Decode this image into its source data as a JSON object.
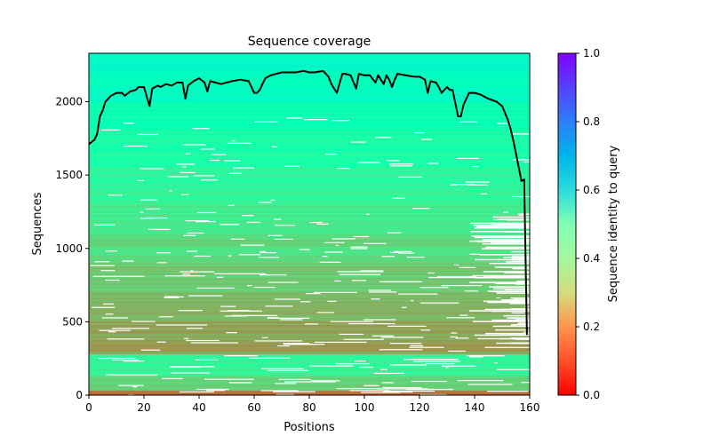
{
  "chart_data": {
    "type": "heatmap",
    "title": "Sequence coverage",
    "xlabel": "Positions",
    "ylabel": "Sequences",
    "xlim": [
      0,
      160
    ],
    "ylim": [
      0,
      2330
    ],
    "xticks": [
      "0",
      "20",
      "40",
      "60",
      "80",
      "100",
      "120",
      "140",
      "160"
    ],
    "xtick_values": [
      0,
      20,
      40,
      60,
      80,
      100,
      120,
      140,
      160
    ],
    "yticks": [
      "0",
      "500",
      "1000",
      "1500",
      "2000"
    ],
    "ytick_values": [
      0,
      500,
      1000,
      1500,
      2000
    ],
    "colorbar": {
      "label": "Sequence identity to query",
      "range": [
        0.0,
        1.0
      ],
      "ticks": [
        "0.0",
        "0.2",
        "0.4",
        "0.6",
        "0.8",
        "1.0"
      ],
      "tick_values": [
        0.0,
        0.2,
        0.4,
        0.6,
        0.8,
        1.0
      ],
      "colormap": "rainbow_r"
    },
    "identity_bands": [
      {
        "y0": 0,
        "y1": 30,
        "identity": 0.14
      },
      {
        "y0": 30,
        "y1": 130,
        "identity": 0.3
      },
      {
        "y0": 130,
        "y1": 280,
        "identity": 0.4
      },
      {
        "y0": 280,
        "y1": 340,
        "identity": 0.2
      },
      {
        "y0": 340,
        "y1": 500,
        "identity": 0.22
      },
      {
        "y0": 500,
        "y1": 700,
        "identity": 0.25
      },
      {
        "y0": 700,
        "y1": 900,
        "identity": 0.29
      },
      {
        "y0": 900,
        "y1": 1100,
        "identity": 0.33
      },
      {
        "y0": 1100,
        "y1": 1300,
        "identity": 0.37
      },
      {
        "y0": 1300,
        "y1": 1550,
        "identity": 0.41
      },
      {
        "y0": 1550,
        "y1": 1800,
        "identity": 0.45
      },
      {
        "y0": 1800,
        "y1": 2000,
        "identity": 0.49
      },
      {
        "y0": 2000,
        "y1": 2200,
        "identity": 0.54
      },
      {
        "y0": 2200,
        "y1": 2330,
        "identity": 0.57
      }
    ],
    "coverage": {
      "x": [
        0,
        2,
        3,
        4,
        5,
        6,
        8,
        10,
        12,
        13,
        15,
        17,
        18,
        20,
        22,
        23,
        25,
        26,
        28,
        30,
        32,
        34,
        35,
        36,
        38,
        40,
        42,
        43,
        44,
        46,
        48,
        50,
        52,
        55,
        58,
        60,
        61,
        62,
        64,
        66,
        68,
        70,
        72,
        75,
        78,
        80,
        82,
        85,
        87,
        88,
        90,
        92,
        93,
        95,
        97,
        98,
        100,
        102,
        104,
        105,
        107,
        108,
        109,
        110,
        111,
        112,
        115,
        118,
        120,
        122,
        123,
        124,
        126,
        127,
        128,
        130,
        131,
        132,
        134,
        135,
        136,
        138,
        140,
        142,
        145,
        148,
        150,
        152,
        153,
        154,
        155,
        157,
        158,
        159
      ],
      "y": [
        1710,
        1740,
        1780,
        1900,
        1940,
        2000,
        2040,
        2060,
        2060,
        2040,
        2070,
        2080,
        2100,
        2100,
        1970,
        2090,
        2110,
        2100,
        2120,
        2110,
        2130,
        2130,
        2020,
        2110,
        2140,
        2160,
        2130,
        2070,
        2140,
        2130,
        2120,
        2130,
        2140,
        2150,
        2140,
        2060,
        2060,
        2080,
        2160,
        2180,
        2190,
        2200,
        2200,
        2200,
        2210,
        2200,
        2200,
        2210,
        2170,
        2120,
        2060,
        2190,
        2190,
        2180,
        2090,
        2190,
        2180,
        2180,
        2130,
        2180,
        2120,
        2180,
        2150,
        2100,
        2150,
        2190,
        2180,
        2170,
        2170,
        2150,
        2060,
        2140,
        2130,
        2100,
        2060,
        2100,
        2080,
        2080,
        1900,
        1900,
        1980,
        2060,
        2060,
        2050,
        2020,
        2000,
        1970,
        1880,
        1820,
        1740,
        1650,
        1460,
        1470,
        410
      ]
    }
  }
}
